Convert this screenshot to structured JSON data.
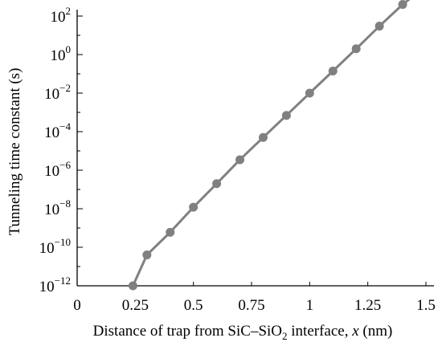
{
  "chart_data": {
    "type": "line",
    "xlabel_parts": {
      "pre": "Distance of trap from SiC–SiO",
      "sub": "2",
      "mid": " interface, ",
      "var": "x",
      "post": " (nm)"
    },
    "ylabel": "Tunneling time constant (s)",
    "xlim": [
      0,
      1.5
    ],
    "y_log_exponent_range": [
      -12,
      2
    ],
    "x_ticks": [
      0,
      0.25,
      0.5,
      0.75,
      1,
      1.25,
      1.5
    ],
    "x_tick_labels": [
      "0",
      "0.25",
      "0.5",
      "0.75",
      "1",
      "1.25",
      "1.5"
    ],
    "y_ticks": [
      {
        "base": "10",
        "exp": "−12",
        "value_exp": -12
      },
      {
        "base": "10",
        "exp": "−10",
        "value_exp": -10
      },
      {
        "base": "10",
        "exp": "−8",
        "value_exp": -8
      },
      {
        "base": "10",
        "exp": "−6",
        "value_exp": -6
      },
      {
        "base": "10",
        "exp": "−4",
        "value_exp": -4
      },
      {
        "base": "10",
        "exp": "−2",
        "value_exp": -2
      },
      {
        "base": "10",
        "exp": "0",
        "value_exp": 0
      },
      {
        "base": "10",
        "exp": "2",
        "value_exp": 2
      }
    ],
    "y_scale": "log",
    "grid": false,
    "series": [
      {
        "color": "#808080",
        "x": [
          0.24,
          0.3,
          0.4,
          0.5,
          0.6,
          0.7,
          0.8,
          0.9,
          1.0,
          1.1,
          1.2,
          1.3,
          1.4,
          1.45
        ],
        "y": [
          1e-12,
          4e-11,
          6e-10,
          1.2e-08,
          2e-07,
          3.5e-06,
          5e-05,
          0.0007,
          0.01,
          0.14,
          2.0,
          30.0,
          400.0,
          1200.0
        ]
      }
    ]
  }
}
